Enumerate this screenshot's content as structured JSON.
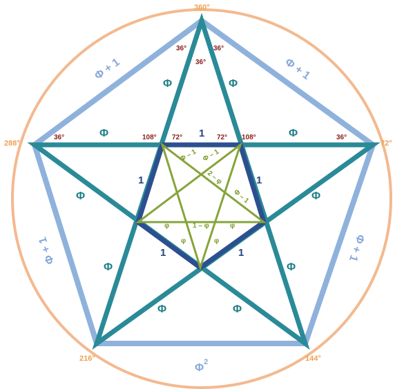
{
  "colors": {
    "circle": "#f3b98f",
    "outer_pentagon": "#8fb2dc",
    "star": "#2a8a98",
    "inner_pentagon": "#2c4f8f",
    "inner_star": "#86a43a",
    "vertex_angle": "#f0a050",
    "inner_angle": "#8a1c1c"
  },
  "vertex_angles": {
    "top": "360°",
    "right": "72°",
    "bottom_right": "144°",
    "bottom_left": "216°",
    "left": "288°"
  },
  "angles": {
    "top_left": "36°",
    "top_right": "36°",
    "top_center": "36°",
    "left": "36°",
    "right": "36°",
    "inner_left_108": "108°",
    "inner_left_72": "72°",
    "inner_right_72": "72°",
    "inner_right_108": "108°"
  },
  "labels": {
    "phi": "Φ",
    "one": "1",
    "phi_plus_one": "Φ + 1",
    "phi_sq_base": "Φ",
    "phi_sq_exp": "2",
    "phi_minus_one": "Φ – 1",
    "two_minus_phi": "2 – φ",
    "small_phi": "φ",
    "one_minus_phi": "1 – φ"
  }
}
